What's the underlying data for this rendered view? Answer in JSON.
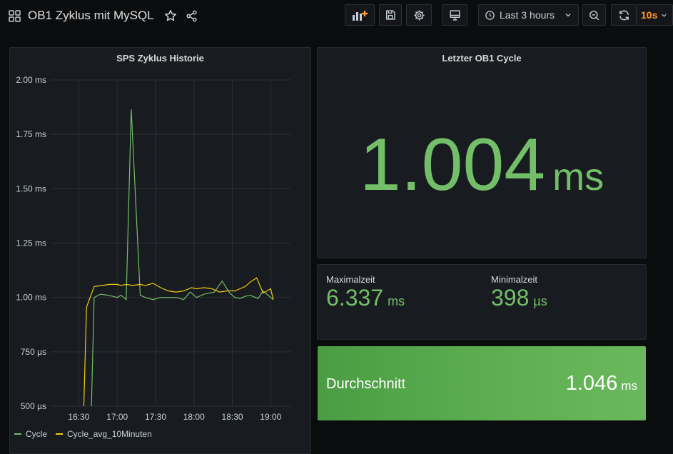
{
  "header": {
    "title": "OB1 Zyklus mit MySQL",
    "time_range": "Last 3 hours",
    "refresh_interval": "10s"
  },
  "colors": {
    "green": "#73bf69",
    "yellow": "#f2cc0c",
    "orange": "#ff9830"
  },
  "panels": {
    "history_title": "SPS Zyklus Historie",
    "last_title": "Letzter OB1 Cycle",
    "last_value": "1.004",
    "last_unit": "ms",
    "max_label": "Maximalzeit",
    "max_value": "6.337",
    "max_unit": "ms",
    "min_label": "Minimalzeit",
    "min_value": "398",
    "min_unit": "µs",
    "avg_label": "Durchschnitt",
    "avg_value": "1.046",
    "avg_unit": "ms"
  },
  "chart_data": {
    "type": "line",
    "title": "SPS Zyklus Historie",
    "y_ticks": [
      "500 µs",
      "750 µs",
      "1.00 ms",
      "1.25 ms",
      "1.50 ms",
      "1.75 ms",
      "2.00 ms"
    ],
    "x_ticks": [
      "16:30",
      "17:00",
      "17:30",
      "18:00",
      "18:30",
      "19:00"
    ],
    "ylim_ms": [
      0.5,
      2.0
    ],
    "xlim_min": [
      -22,
      166
    ],
    "x_tick_minutes": [
      0,
      30,
      60,
      90,
      120,
      150
    ],
    "legend": "bottom-left",
    "series": [
      {
        "name": "Cycle",
        "color": "#73bf69",
        "x": [
          9,
          12,
          17,
          23,
          30,
          33,
          37,
          41,
          48,
          52,
          58,
          64,
          70,
          76,
          82,
          87,
          92,
          98,
          106,
          112,
          118,
          122,
          126,
          130,
          134,
          140,
          144,
          150,
          152
        ],
        "y": [
          0.3,
          1.0,
          1.015,
          1.01,
          1.0,
          1.01,
          0.99,
          1.865,
          1.01,
          1.0,
          0.99,
          1.0,
          1.0,
          1.0,
          0.99,
          1.025,
          1.0,
          1.015,
          1.025,
          1.075,
          1.02,
          1.0,
          0.995,
          1.005,
          1.01,
          0.995,
          1.03,
          1.0,
          0.99
        ]
      },
      {
        "name": "Cycle_avg_10Minuten",
        "color": "#f2cc0c",
        "x": [
          3,
          6,
          12,
          18,
          24,
          30,
          33,
          37,
          42,
          48,
          52,
          58,
          64,
          70,
          76,
          82,
          88,
          92,
          98,
          104,
          110,
          116,
          122,
          126,
          130,
          134,
          139,
          144,
          150,
          152
        ],
        "y": [
          0.3,
          0.955,
          1.05,
          1.055,
          1.06,
          1.06,
          1.055,
          1.06,
          1.055,
          1.06,
          1.055,
          1.065,
          1.045,
          1.03,
          1.025,
          1.03,
          1.045,
          1.04,
          1.045,
          1.04,
          1.025,
          1.03,
          1.03,
          1.04,
          1.05,
          1.07,
          1.09,
          1.02,
          1.04,
          0.99
        ]
      }
    ]
  }
}
